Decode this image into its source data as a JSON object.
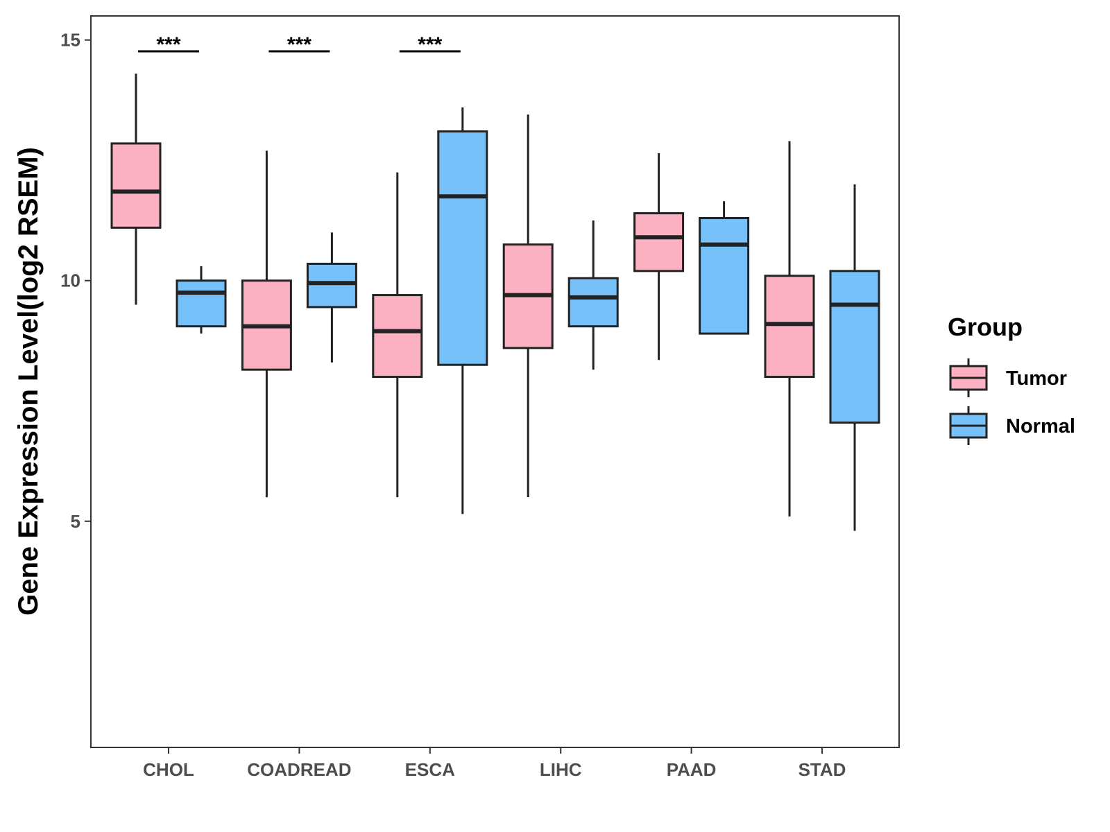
{
  "chart_data": {
    "type": "boxplot",
    "title": "",
    "xlabel": "",
    "ylabel": "Gene Expression Level(log2 RSEM)",
    "ylim": [
      0.3,
      15.5
    ],
    "yticks": [
      5,
      10,
      15
    ],
    "grid": false,
    "legend": {
      "title": "Group",
      "position": "right",
      "entries": [
        "Tumor",
        "Normal"
      ]
    },
    "categories": [
      "CHOL",
      "COADREAD",
      "ESCA",
      "LIHC",
      "PAAD",
      "STAD"
    ],
    "series": [
      {
        "name": "Tumor",
        "color": "#FBB1C1",
        "boxes": [
          {
            "whisker_low": 9.5,
            "q1": 11.1,
            "median": 11.85,
            "q3": 12.85,
            "whisker_high": 14.3
          },
          {
            "whisker_low": 5.5,
            "q1": 8.15,
            "median": 9.05,
            "q3": 10.0,
            "whisker_high": 12.7
          },
          {
            "whisker_low": 5.5,
            "q1": 8.0,
            "median": 8.95,
            "q3": 9.7,
            "whisker_high": 12.25
          },
          {
            "whisker_low": 5.5,
            "q1": 8.6,
            "median": 9.7,
            "q3": 10.75,
            "whisker_high": 13.45
          },
          {
            "whisker_low": 8.35,
            "q1": 10.2,
            "median": 10.9,
            "q3": 11.4,
            "whisker_high": 12.65
          },
          {
            "whisker_low": 5.1,
            "q1": 8.0,
            "median": 9.1,
            "q3": 10.1,
            "whisker_high": 12.9
          }
        ]
      },
      {
        "name": "Normal",
        "color": "#76C1FA",
        "boxes": [
          {
            "whisker_low": 8.9,
            "q1": 9.05,
            "median": 9.75,
            "q3": 10.0,
            "whisker_high": 10.3
          },
          {
            "whisker_low": 8.3,
            "q1": 9.45,
            "median": 9.95,
            "q3": 10.35,
            "whisker_high": 11.0
          },
          {
            "whisker_low": 5.15,
            "q1": 8.25,
            "median": 11.75,
            "q3": 13.1,
            "whisker_high": 13.6
          },
          {
            "whisker_low": 8.15,
            "q1": 9.05,
            "median": 9.65,
            "q3": 10.05,
            "whisker_high": 11.25
          },
          {
            "whisker_low": 8.9,
            "q1": 8.9,
            "median": 10.75,
            "q3": 11.3,
            "whisker_high": 11.65
          },
          {
            "whisker_low": 4.8,
            "q1": 7.05,
            "median": 9.5,
            "q3": 10.2,
            "whisker_high": 12.0
          }
        ]
      }
    ],
    "annotations": [
      {
        "category": "CHOL",
        "text": "***"
      },
      {
        "category": "COADREAD",
        "text": "***"
      },
      {
        "category": "ESCA",
        "text": "***"
      }
    ]
  }
}
